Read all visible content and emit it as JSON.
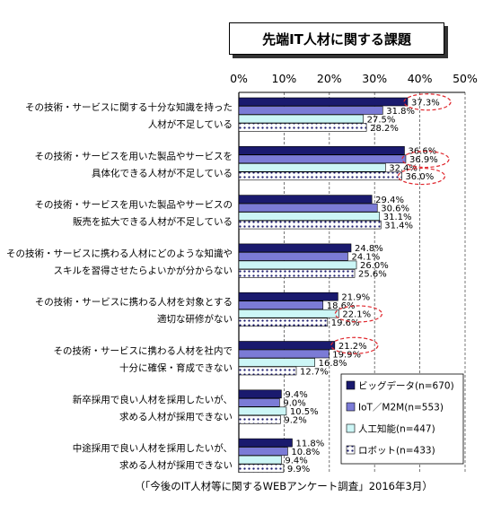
{
  "chart_data": {
    "type": "bar",
    "orientation": "horizontal",
    "title": "先端IT人材に関する課題",
    "xlim": [
      0,
      50
    ],
    "x_ticks": [
      "0%",
      "10%",
      "20%",
      "30%",
      "40%",
      "50%"
    ],
    "grid": true,
    "legend_position": "bottom-right",
    "categories": [
      [
        "その技術・サービスに関する十分な知識を持った",
        "人材が不足している"
      ],
      [
        "その技術・サービスを用いた製品やサービスを",
        "具体化できる人材が不足している"
      ],
      [
        "その技術・サービスを用いた製品やサービスの",
        "販売を拡大できる人材が不足している"
      ],
      [
        "その技術・サービスに携わる人材にどのような知識や",
        "スキルを習得させたらよいかが分からない"
      ],
      [
        "その技術・サービスに携わる人材を対象とする",
        "適切な研修がない"
      ],
      [
        "その技術・サービスに携わる人材を社内で",
        "十分に確保・育成できない"
      ],
      [
        "新卒採用で良い人材を採用したいが、",
        "求める人材が採用できない"
      ],
      [
        "中途採用で良い人材を採用したいが、",
        "求める人材が採用できない"
      ]
    ],
    "series": [
      {
        "name": "ビッグデータ(n=670)",
        "color": "#1a1a6e",
        "pattern": "solid",
        "values": [
          37.3,
          36.6,
          29.4,
          24.8,
          21.9,
          21.2,
          9.4,
          11.8
        ]
      },
      {
        "name": "IoT／M2M(n=553)",
        "color": "#7b7bd6",
        "pattern": "solid",
        "values": [
          31.8,
          36.9,
          30.6,
          24.1,
          18.6,
          19.9,
          9.0,
          10.8
        ]
      },
      {
        "name": "人工知能(n=447)",
        "color": "#ccf6f6",
        "pattern": "solid",
        "values": [
          27.5,
          32.4,
          31.1,
          26.0,
          22.1,
          16.8,
          10.5,
          9.4
        ]
      },
      {
        "name": "ロボット(n=433)",
        "color": "#1a1a6e",
        "pattern": "dots",
        "values": [
          28.2,
          36.0,
          31.4,
          25.6,
          19.6,
          12.7,
          9.2,
          9.9
        ]
      }
    ],
    "value_labels": [
      [
        "37.3%",
        "31.8%",
        "27.5%",
        "28.2%"
      ],
      [
        "36.6%",
        "36.9%",
        "32.4%",
        "36.0%"
      ],
      [
        "29.4%",
        "30.6%",
        "31.1%",
        "31.4%"
      ],
      [
        "24.8%",
        "24.1%",
        "26.0%",
        "25.6%"
      ],
      [
        "21.9%",
        "18.6%",
        "22.1%",
        "19.6%"
      ],
      [
        "21.2%",
        "19.9%",
        "16.8%",
        "12.7%"
      ],
      [
        "9.4%",
        "9.0%",
        "10.5%",
        "9.2%"
      ],
      [
        "11.8%",
        "10.8%",
        "9.4%",
        "9.9%"
      ]
    ],
    "highlighted": [
      [
        0,
        0
      ],
      [
        1,
        1
      ],
      [
        1,
        3
      ],
      [
        4,
        2
      ],
      [
        5,
        0
      ]
    ],
    "highlight_color": "#e0282e",
    "source": "（「今後のIT人材等に関するWEBアンケート調査」2016年3月）"
  }
}
